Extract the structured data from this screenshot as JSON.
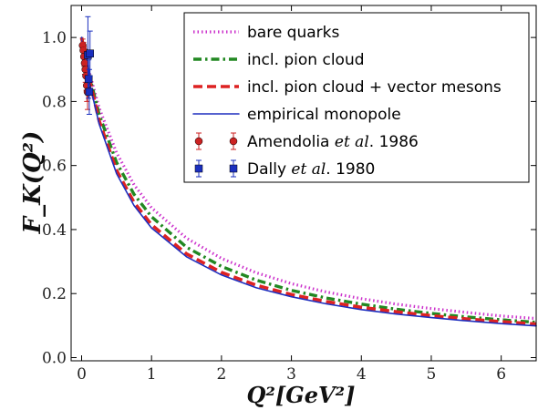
{
  "chart_data": {
    "type": "line",
    "xlabel": "Q²[GeV²]",
    "ylabel": "F_K(Q²)",
    "xlim": [
      -0.15,
      6.5
    ],
    "ylim": [
      -0.01,
      1.1
    ],
    "xticks": [
      "0",
      "1",
      "2",
      "3",
      "4",
      "5",
      "6"
    ],
    "yticks": [
      "0.0",
      "0.2",
      "0.4",
      "0.6",
      "0.8",
      "1.0"
    ],
    "legend_position": "top-right",
    "grid": false,
    "series": [
      {
        "name": "bare quarks",
        "style": "dotted",
        "color": "#cc33cc",
        "x": [
          0.0,
          0.1,
          0.25,
          0.5,
          0.75,
          1.0,
          1.5,
          2.0,
          2.5,
          3.0,
          3.5,
          4.0,
          4.5,
          5.0,
          5.5,
          6.0,
          6.5
        ],
        "y": [
          1.0,
          0.9,
          0.78,
          0.64,
          0.54,
          0.468,
          0.373,
          0.31,
          0.265,
          0.231,
          0.205,
          0.184,
          0.167,
          0.153,
          0.141,
          0.13,
          0.122
        ]
      },
      {
        "name": "incl. pion cloud",
        "style": "dashdot",
        "color": "#228822",
        "x": [
          0.0,
          0.1,
          0.25,
          0.5,
          0.75,
          1.0,
          1.5,
          2.0,
          2.5,
          3.0,
          3.5,
          4.0,
          4.5,
          5.0,
          5.5,
          6.0,
          6.5
        ],
        "y": [
          1.0,
          0.89,
          0.76,
          0.61,
          0.51,
          0.44,
          0.345,
          0.285,
          0.242,
          0.21,
          0.186,
          0.167,
          0.151,
          0.138,
          0.127,
          0.118,
          0.11
        ]
      },
      {
        "name": "incl. pion cloud + vector mesons",
        "style": "dashed",
        "color": "#dd2222",
        "x": [
          0.0,
          0.1,
          0.25,
          0.5,
          0.75,
          1.0,
          1.5,
          2.0,
          2.5,
          3.0,
          3.5,
          4.0,
          4.5,
          5.0,
          5.5,
          6.0,
          6.5
        ],
        "y": [
          1.0,
          0.88,
          0.74,
          0.585,
          0.485,
          0.415,
          0.324,
          0.266,
          0.226,
          0.197,
          0.175,
          0.157,
          0.143,
          0.131,
          0.121,
          0.112,
          0.105
        ]
      },
      {
        "name": "empirical monopole",
        "style": "solid",
        "color": "#1f2fbf",
        "x": [
          0.0,
          0.1,
          0.25,
          0.5,
          0.75,
          1.0,
          1.5,
          2.0,
          2.5,
          3.0,
          3.5,
          4.0,
          4.5,
          5.0,
          5.5,
          6.0,
          6.5
        ],
        "y": [
          1.0,
          0.87,
          0.73,
          0.575,
          0.475,
          0.405,
          0.315,
          0.258,
          0.218,
          0.19,
          0.168,
          0.15,
          0.136,
          0.125,
          0.115,
          0.106,
          0.099
        ]
      }
    ],
    "data_series": [
      {
        "name_prefix": "Amendolia ",
        "name_italic": "et al",
        "name_suffix": ". 1986",
        "marker": "circle",
        "color": "#cc2222",
        "points": [
          {
            "x": 0.016,
            "y": 0.975,
            "err": 0.02
          },
          {
            "x": 0.026,
            "y": 0.96,
            "err": 0.025
          },
          {
            "x": 0.035,
            "y": 0.94,
            "err": 0.03
          },
          {
            "x": 0.045,
            "y": 0.92,
            "err": 0.035
          },
          {
            "x": 0.055,
            "y": 0.9,
            "err": 0.04
          },
          {
            "x": 0.065,
            "y": 0.88,
            "err": 0.045
          },
          {
            "x": 0.075,
            "y": 0.85,
            "err": 0.05
          },
          {
            "x": 0.085,
            "y": 0.83,
            "err": 0.055
          }
        ]
      },
      {
        "name_prefix": "Dally ",
        "name_italic": "et al",
        "name_suffix": ". 1980",
        "marker": "square",
        "color": "#1a2fbf",
        "points": [
          {
            "x": 0.09,
            "y": 0.945,
            "err": 0.12
          },
          {
            "x": 0.1,
            "y": 0.87,
            "err": 0.06
          },
          {
            "x": 0.11,
            "y": 0.83,
            "err": 0.07
          },
          {
            "x": 0.12,
            "y": 0.95,
            "err": 0.07
          }
        ]
      }
    ]
  }
}
